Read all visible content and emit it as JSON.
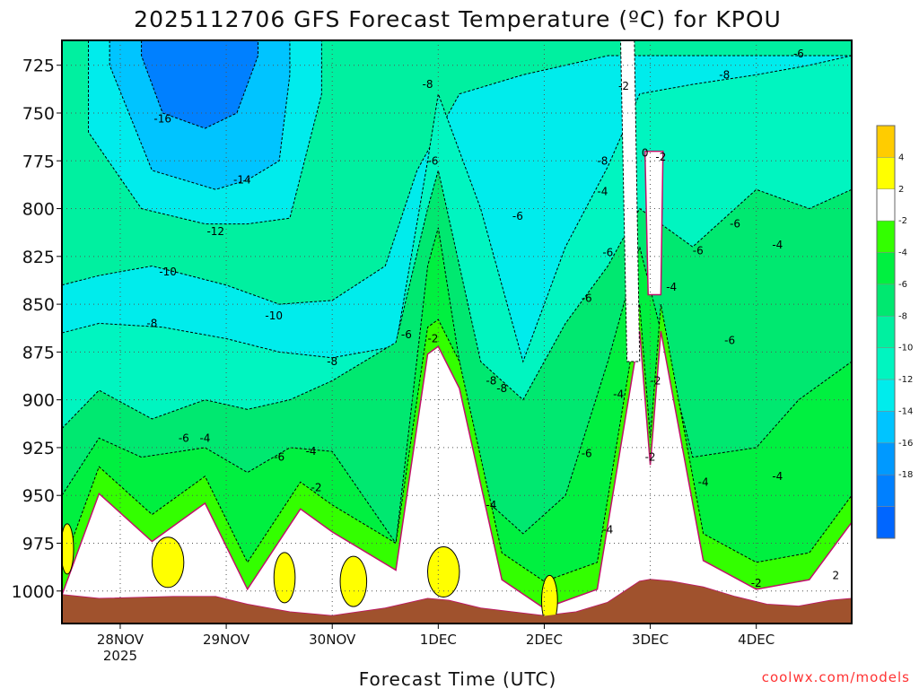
{
  "chart_data": {
    "type": "heatmap",
    "title": "2025112706 GFS Forecast Temperature (ºC) for KPOU",
    "xlabel": "Forecast Time (UTC)",
    "ylabel": "",
    "y_unit": "hPa",
    "x_ticks": [
      {
        "day": 0,
        "label": "28NOV",
        "sublabel": "2025"
      },
      {
        "day": 1,
        "label": "29NOV",
        "sublabel": ""
      },
      {
        "day": 2,
        "label": "30NOV",
        "sublabel": ""
      },
      {
        "day": 3,
        "label": "1DEC",
        "sublabel": ""
      },
      {
        "day": 4,
        "label": "2DEC",
        "sublabel": ""
      },
      {
        "day": 5,
        "label": "3DEC",
        "sublabel": ""
      },
      {
        "day": 6,
        "label": "4DEC",
        "sublabel": ""
      }
    ],
    "xlim_days": [
      -0.55,
      6.9
    ],
    "y_ticks": [
      725,
      750,
      775,
      800,
      825,
      850,
      875,
      900,
      925,
      950,
      975,
      1000
    ],
    "ylim": [
      712,
      1017
    ],
    "colorbar": {
      "levels": [
        -20,
        -18,
        -16,
        -14,
        -12,
        -10,
        -8,
        -6,
        -4,
        -2,
        2,
        4,
        6
      ],
      "labels": [
        "4",
        "2",
        "-2",
        "-4",
        "-6",
        "-8",
        "-10",
        "-12",
        "-14",
        "-16",
        "-18"
      ],
      "colors": [
        "#0066ff",
        "#0080ff",
        "#0099ff",
        "#00c4ff",
        "#00ecec",
        "#00f5c0",
        "#00f0a0",
        "#00e870",
        "#00f040",
        "#33ff00",
        "#ffffff",
        "#ffff00",
        "#ffcc00"
      ]
    },
    "ground_color": "#a0522d",
    "series": [
      {
        "name": "surface_pressure",
        "x_days": [
          -0.55,
          -0.2,
          0.5,
          0.9,
          1.2,
          1.6,
          2.0,
          2.5,
          2.9,
          3.1,
          3.4,
          3.7,
          4.0,
          4.3,
          4.6,
          4.9,
          5.0,
          5.2,
          5.5,
          5.8,
          6.1,
          6.4,
          6.7,
          6.9
        ],
        "values": [
          1002,
          1004,
          1003,
          1003,
          1007,
          1011,
          1013,
          1009,
          1004,
          1005,
          1009,
          1011,
          1013,
          1011,
          1006,
          995,
          994,
          995,
          998,
          1003,
          1007,
          1008,
          1005,
          1004
        ]
      },
      {
        "name": "isotherm_-2C",
        "x_days": [
          -0.55,
          -0.2,
          0.3,
          0.8,
          1.2,
          1.7,
          2.0,
          2.6,
          2.9,
          3.0,
          3.2,
          3.6,
          4.0,
          4.5,
          4.9,
          5.0,
          5.1,
          5.5,
          6.0,
          6.5,
          6.9
        ],
        "values": [
          988,
          935,
          960,
          940,
          985,
          943,
          955,
          975,
          862,
          858,
          880,
          980,
          995,
          985,
          850,
          920,
          850,
          970,
          985,
          980,
          950
        ]
      },
      {
        "name": "isotherm_-4C",
        "x_days": [
          -0.55,
          -0.2,
          0.2,
          0.8,
          1.2,
          1.6,
          2.0,
          2.6,
          2.9,
          3.0,
          3.4,
          3.8,
          4.2,
          4.6,
          4.9,
          5.4,
          6.0,
          6.4,
          6.9
        ],
        "values": [
          950,
          920,
          930,
          925,
          938,
          925,
          927,
          975,
          830,
          810,
          950,
          970,
          950,
          880,
          820,
          930,
          925,
          900,
          880
        ]
      },
      {
        "name": "isotherm_-6C",
        "x_days": [
          -0.55,
          -0.2,
          0.3,
          0.8,
          1.2,
          1.6,
          2.0,
          2.6,
          2.9,
          3.0,
          3.4,
          3.8,
          4.2,
          4.6,
          4.9,
          5.4,
          6.0,
          6.5,
          6.9
        ],
        "values": [
          915,
          895,
          910,
          900,
          905,
          900,
          890,
          870,
          800,
          780,
          880,
          900,
          860,
          830,
          800,
          820,
          790,
          800,
          790
        ]
      },
      {
        "name": "isotherm_-8C",
        "x_days": [
          -0.55,
          -0.2,
          0.4,
          1.0,
          1.5,
          2.0,
          2.6,
          2.9,
          3.0,
          3.4,
          3.8,
          4.2,
          4.6,
          4.9,
          5.4,
          6.0,
          6.5,
          6.9
        ],
        "values": [
          865,
          860,
          862,
          868,
          875,
          878,
          872,
          775,
          740,
          800,
          880,
          820,
          778,
          740,
          735,
          730,
          725,
          720
        ]
      },
      {
        "name": "isotherm_-10C",
        "x_days": [
          -0.55,
          -0.2,
          0.3,
          1.0,
          1.5,
          2.0,
          2.5,
          2.8,
          3.2,
          3.8,
          4.2,
          4.6
        ],
        "values": [
          840,
          835,
          830,
          840,
          850,
          848,
          830,
          780,
          740,
          730,
          725,
          720
        ]
      },
      {
        "name": "isotherm_-12C",
        "x_days": [
          -0.3,
          0.2,
          0.8,
          1.2,
          1.6,
          1.9
        ],
        "values": [
          760,
          800,
          808,
          808,
          805,
          740
        ]
      },
      {
        "name": "isotherm_-14C",
        "x_days": [
          -0.1,
          0.3,
          0.9,
          1.2,
          1.5,
          1.6
        ],
        "values": [
          725,
          780,
          790,
          785,
          775,
          730
        ]
      },
      {
        "name": "isotherm_-16C",
        "x_days": [
          0.2,
          0.4,
          0.8,
          1.1,
          1.3
        ],
        "values": [
          720,
          750,
          758,
          750,
          720
        ]
      }
    ],
    "contour_labels": [
      {
        "day": 0.4,
        "p": 753,
        "text": "-16"
      },
      {
        "day": 1.15,
        "p": 785,
        "text": "-14"
      },
      {
        "day": 0.9,
        "p": 812,
        "text": "-12"
      },
      {
        "day": 0.45,
        "p": 833,
        "text": "-10"
      },
      {
        "day": 1.45,
        "p": 856,
        "text": "-10"
      },
      {
        "day": 0.3,
        "p": 860,
        "text": "-8"
      },
      {
        "day": 2.0,
        "p": 880,
        "text": "-8"
      },
      {
        "day": 2.9,
        "p": 735,
        "text": "-8"
      },
      {
        "day": 2.7,
        "p": 866,
        "text": "-6"
      },
      {
        "day": 2.95,
        "p": 775,
        "text": "-6"
      },
      {
        "day": 3.75,
        "p": 804,
        "text": "-6"
      },
      {
        "day": 3.6,
        "p": 894,
        "text": "-8"
      },
      {
        "day": 3.5,
        "p": 890,
        "text": "-8"
      },
      {
        "day": 0.6,
        "p": 920,
        "text": "-6"
      },
      {
        "day": 0.8,
        "p": 920,
        "text": "-4"
      },
      {
        "day": 1.5,
        "p": 930,
        "text": "-6"
      },
      {
        "day": 1.8,
        "p": 927,
        "text": "-4"
      },
      {
        "day": 1.85,
        "p": 946,
        "text": "-2"
      },
      {
        "day": 2.95,
        "p": 868,
        "text": "-2"
      },
      {
        "day": 3.5,
        "p": 955,
        "text": "-4"
      },
      {
        "day": 4.4,
        "p": 928,
        "text": "-6"
      },
      {
        "day": 4.55,
        "p": 775,
        "text": "-8"
      },
      {
        "day": 4.55,
        "p": 791,
        "text": "-4"
      },
      {
        "day": 4.6,
        "p": 823,
        "text": "-6"
      },
      {
        "day": 4.4,
        "p": 847,
        "text": "-6"
      },
      {
        "day": 4.7,
        "p": 897,
        "text": "-4"
      },
      {
        "day": 4.6,
        "p": 968,
        "text": "-4"
      },
      {
        "day": 4.75,
        "p": 736,
        "text": "-2"
      },
      {
        "day": 4.95,
        "p": 771,
        "text": "0"
      },
      {
        "day": 5.1,
        "p": 773,
        "text": "-2"
      },
      {
        "day": 5.2,
        "p": 841,
        "text": "-4"
      },
      {
        "day": 5.05,
        "p": 890,
        "text": "-2"
      },
      {
        "day": 5.0,
        "p": 930,
        "text": "-2"
      },
      {
        "day": 5.7,
        "p": 730,
        "text": "-8"
      },
      {
        "day": 5.45,
        "p": 822,
        "text": "-6"
      },
      {
        "day": 5.8,
        "p": 808,
        "text": "-6"
      },
      {
        "day": 5.75,
        "p": 869,
        "text": "-6"
      },
      {
        "day": 6.2,
        "p": 819,
        "text": "-4"
      },
      {
        "day": 5.5,
        "p": 943,
        "text": "-4"
      },
      {
        "day": 6.2,
        "p": 940,
        "text": "-4"
      },
      {
        "day": 6.4,
        "p": 719,
        "text": "-6"
      },
      {
        "day": 6.0,
        "p": 996,
        "text": "-2"
      },
      {
        "day": 6.75,
        "p": 992,
        "text": "2"
      }
    ]
  },
  "credit": {
    "text": "coolwx.com/models",
    "color": "#ff3333"
  }
}
